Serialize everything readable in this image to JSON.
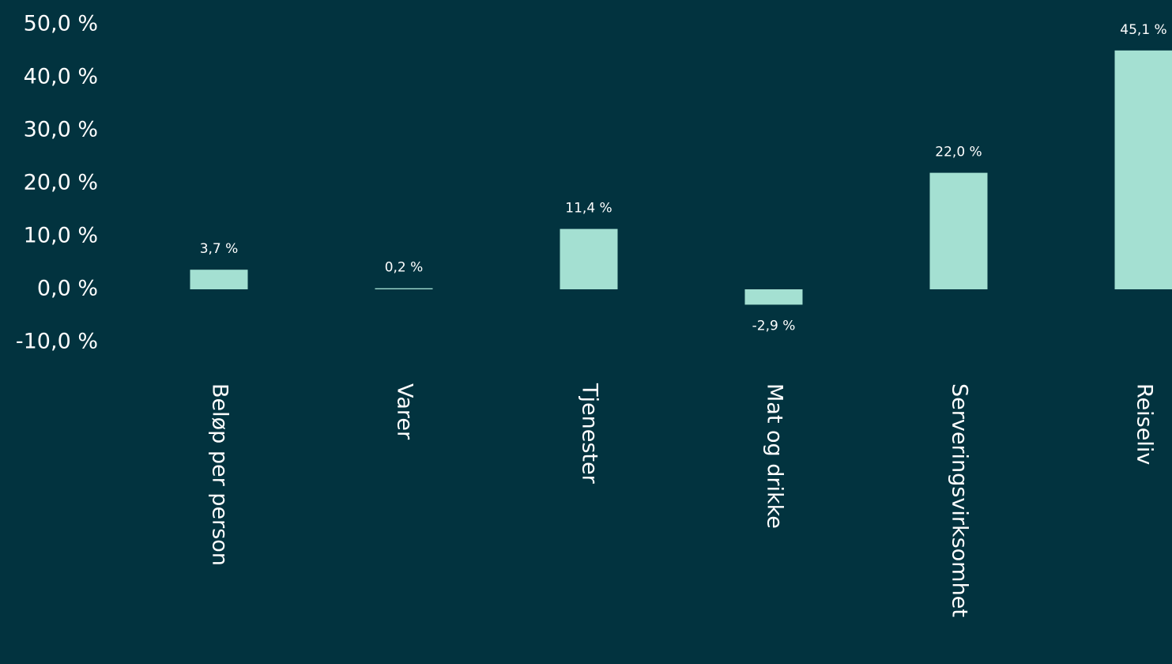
{
  "chart_data": {
    "type": "bar",
    "categories": [
      "Beløp per person",
      "Varer",
      "Tjenester",
      "Mat og drikke",
      "Serveringsvirksomhet",
      "Reiseliv"
    ],
    "values": [
      3.7,
      0.2,
      11.4,
      -2.9,
      22.0,
      45.1
    ],
    "value_labels": [
      "3,7 %",
      "0,2 %",
      "11,4 %",
      "-2,9 %",
      "22,0 %",
      "45,1 %"
    ],
    "color": "#a4e0d2",
    "ylim": [
      -10,
      50
    ],
    "yticks": [
      {
        "value": -10,
        "label": "-10,0 %"
      },
      {
        "value": 0,
        "label": "0,0 %"
      },
      {
        "value": 10,
        "label": "10,0 %"
      },
      {
        "value": 20,
        "label": "20,0 %"
      },
      {
        "value": 30,
        "label": "30,0 %"
      },
      {
        "value": 40,
        "label": "40,0 %"
      },
      {
        "value": 50,
        "label": "50,0 %"
      }
    ],
    "grid": false
  }
}
